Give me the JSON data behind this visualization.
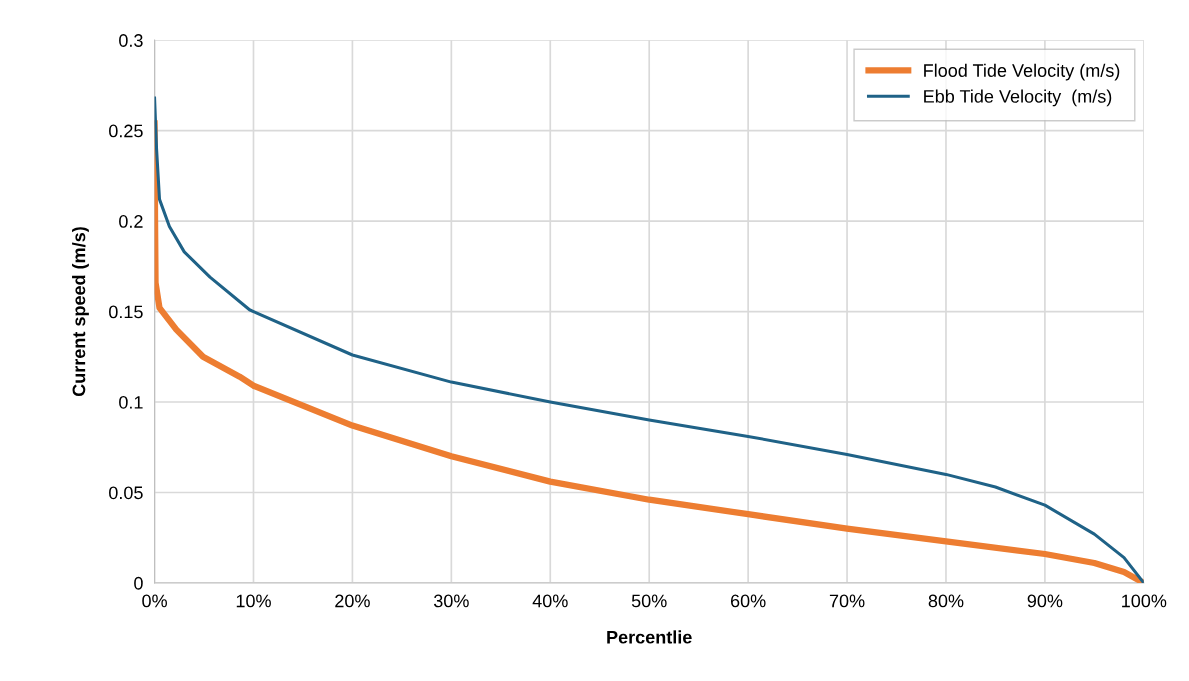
{
  "chart_data": {
    "type": "line",
    "xlabel": "Percentlie",
    "ylabel": "Current speed (m/s)",
    "xlim": [
      0,
      100
    ],
    "ylim": [
      0,
      0.3
    ],
    "xticks": [
      {
        "value": 0,
        "label": "0%"
      },
      {
        "value": 10,
        "label": "10%"
      },
      {
        "value": 20,
        "label": "20%"
      },
      {
        "value": 30,
        "label": "30%"
      },
      {
        "value": 40,
        "label": "40%"
      },
      {
        "value": 50,
        "label": "50%"
      },
      {
        "value": 60,
        "label": "60%"
      },
      {
        "value": 70,
        "label": "70%"
      },
      {
        "value": 80,
        "label": "80%"
      },
      {
        "value": 90,
        "label": "90%"
      },
      {
        "value": 100,
        "label": "100%"
      }
    ],
    "yticks": [
      0,
      0.05,
      0.1,
      0.15,
      0.2,
      0.25,
      0.3
    ],
    "grid": true,
    "legend": "top right",
    "marker": "none",
    "line_style": "solid",
    "series": [
      {
        "name": "Flood Tide Velocity (m/s)",
        "color": "#ed7d31",
        "x": [
          0,
          0.05,
          0.1,
          0.5,
          2.2,
          4.9,
          8.6,
          10,
          20,
          30,
          40,
          50,
          60,
          70,
          80,
          90,
          95,
          98,
          100
        ],
        "values": [
          0.254,
          0.2,
          0.166,
          0.152,
          0.14,
          0.125,
          0.114,
          0.109,
          0.087,
          0.07,
          0.056,
          0.046,
          0.038,
          0.03,
          0.023,
          0.016,
          0.011,
          0.006,
          0
        ]
      },
      {
        "name": "Ebb Tide Velocity  (m/s)",
        "color": "#1f6287",
        "x": [
          0,
          0.2,
          0.5,
          1.5,
          3,
          5.6,
          9.6,
          10,
          20,
          30,
          40,
          50,
          60,
          70,
          80,
          85,
          90,
          95,
          98,
          100
        ],
        "values": [
          0.268,
          0.24,
          0.212,
          0.197,
          0.183,
          0.169,
          0.151,
          0.15,
          0.126,
          0.111,
          0.1,
          0.09,
          0.081,
          0.071,
          0.06,
          0.053,
          0.043,
          0.027,
          0.014,
          0
        ]
      }
    ]
  }
}
